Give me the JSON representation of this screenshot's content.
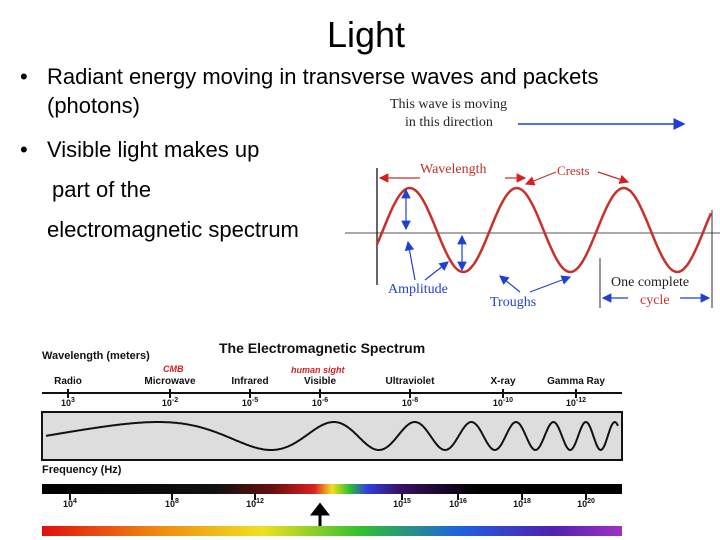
{
  "title": "Light",
  "bullets": [
    {
      "lines": [
        "Radiant energy moving in transverse waves and packets",
        "(photons)"
      ]
    },
    {
      "lines": [
        "Visible light makes up",
        "part of the",
        "electromagnetic spectrum"
      ]
    }
  ],
  "wave_diagram": {
    "direction_label": [
      "This wave is moving",
      "in this direction"
    ],
    "wavelength": "Wavelength",
    "crests": "Crests",
    "amplitude": "Amplitude",
    "troughs": "Troughs",
    "cycle_label": [
      "One complete",
      "cycle"
    ]
  },
  "spectrum": {
    "title": "The Electromagnetic Spectrum",
    "wavelength_heading": "Wavelength (meters)",
    "cmb": "CMB",
    "human_sight": "human sight",
    "bands": [
      "Radio",
      "Microwave",
      "Infrared",
      "Visible",
      "Ultraviolet",
      "X-ray",
      "Gamma Ray"
    ],
    "wavelengths": [
      {
        "base": "10",
        "exponent": "3"
      },
      {
        "base": "10",
        "exponent": "-2"
      },
      {
        "base": "10",
        "exponent": "-5"
      },
      {
        "base": "10",
        "exponent": "-6"
      },
      {
        "base": "10",
        "exponent": "-8"
      },
      {
        "base": "10",
        "exponent": "-10"
      },
      {
        "base": "10",
        "exponent": "-12"
      }
    ],
    "frequency_heading": "Frequency (Hz)",
    "frequencies": [
      {
        "base": "10",
        "exponent": "4"
      },
      {
        "base": "10",
        "exponent": "8"
      },
      {
        "base": "10",
        "exponent": "12"
      },
      {
        "base": "10",
        "exponent": "15"
      },
      {
        "base": "10",
        "exponent": "16"
      },
      {
        "base": "10",
        "exponent": "18"
      },
      {
        "base": "10",
        "exponent": "20"
      }
    ]
  }
}
